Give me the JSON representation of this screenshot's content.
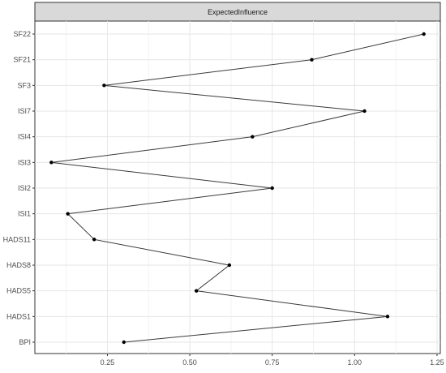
{
  "chart_data": {
    "type": "line",
    "facet_label": "ExpectedInfluence",
    "categories": [
      "SF22",
      "SF21",
      "SF3",
      "ISI7",
      "ISI4",
      "ISI3",
      "ISI2",
      "ISI1",
      "HADS11",
      "HADS8",
      "HADS5",
      "HADS1",
      "BPI"
    ],
    "values": [
      1.21,
      0.87,
      0.24,
      1.03,
      0.69,
      0.08,
      0.75,
      0.13,
      0.21,
      0.62,
      0.52,
      1.1,
      0.3
    ],
    "x_ticks": [
      0.25,
      0.5,
      0.75,
      1.0,
      1.25
    ],
    "x_tick_labels": [
      "0.25",
      "0.50",
      "0.75",
      "1.00",
      "1.25"
    ],
    "xlim": [
      0.03,
      1.26
    ],
    "grid": true,
    "colors": {
      "line": "#3a3a3a",
      "point": "#000000",
      "strip": "#d9d9d9"
    }
  }
}
